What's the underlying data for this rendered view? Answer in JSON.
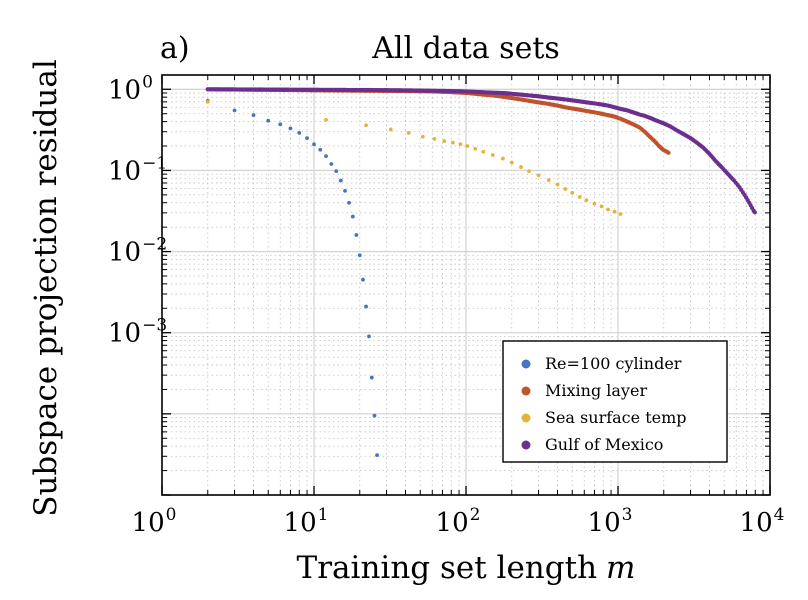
{
  "chart_data": {
    "type": "scatter",
    "panel_label": "a)",
    "title": "All data sets",
    "xlabel": "Training set length",
    "xlabel_var": "m",
    "ylabel": "Subspace projection residual",
    "xscale": "log",
    "yscale": "log",
    "xlim": [
      1,
      10000
    ],
    "ylim": [
      1e-05,
      1.5
    ],
    "grid": true,
    "legend_position": "bottom-right",
    "x_ticks": [
      {
        "value": 1,
        "base": "10",
        "exp": "0"
      },
      {
        "value": 10,
        "base": "10",
        "exp": "1"
      },
      {
        "value": 100,
        "base": "10",
        "exp": "2"
      },
      {
        "value": 1000,
        "base": "10",
        "exp": "3"
      },
      {
        "value": 10000,
        "base": "10",
        "exp": "4"
      }
    ],
    "y_ticks": [
      {
        "value": 1,
        "base": "10",
        "exp": "0"
      },
      {
        "value": 0.1,
        "base": "10",
        "exp": "−1"
      },
      {
        "value": 0.01,
        "base": "10",
        "exp": "−2"
      },
      {
        "value": 0.001,
        "base": "10",
        "exp": "−3"
      }
    ],
    "series": [
      {
        "name": "Re=100 cylinder",
        "color": "#4a72c4",
        "x": [
          2,
          3,
          4,
          5,
          6,
          7,
          8,
          9,
          10,
          11,
          12,
          13,
          14,
          15,
          16,
          17,
          18,
          19,
          20,
          21,
          22,
          23,
          24,
          25,
          26
        ],
        "y": [
          0.72,
          0.55,
          0.48,
          0.41,
          0.37,
          0.33,
          0.29,
          0.25,
          0.21,
          0.18,
          0.15,
          0.12,
          0.098,
          0.075,
          0.056,
          0.04,
          0.027,
          0.016,
          0.009,
          0.0045,
          0.0021,
          0.0009,
          0.00028,
          9.5e-05,
          3.1e-05
        ]
      },
      {
        "name": "Mixing layer",
        "color": "#c0532b",
        "x": [
          2,
          12,
          22,
          32,
          42,
          52,
          62,
          72,
          82,
          92,
          102,
          115,
          130,
          150,
          175,
          200,
          230,
          260,
          300,
          350,
          400,
          450,
          500,
          560,
          620,
          700,
          780,
          860,
          950,
          1050,
          1150,
          1260,
          1380,
          1500,
          1620,
          1740,
          1860,
          1980,
          2100,
          2200
        ],
        "y": [
          1.0,
          0.97,
          0.96,
          0.955,
          0.95,
          0.945,
          0.94,
          0.93,
          0.92,
          0.91,
          0.9,
          0.88,
          0.86,
          0.84,
          0.81,
          0.78,
          0.75,
          0.72,
          0.69,
          0.66,
          0.63,
          0.6,
          0.58,
          0.56,
          0.54,
          0.52,
          0.5,
          0.48,
          0.46,
          0.43,
          0.4,
          0.37,
          0.34,
          0.3,
          0.26,
          0.23,
          0.2,
          0.18,
          0.17,
          0.16
        ]
      },
      {
        "name": "Sea surface temp",
        "color": "#e2b43a",
        "x": [
          2,
          12,
          22,
          32,
          42,
          52,
          62,
          72,
          82,
          92,
          102,
          115,
          130,
          150,
          175,
          200,
          230,
          260,
          300,
          350,
          400,
          450,
          500,
          560,
          620,
          700,
          780,
          860,
          950,
          1040
        ],
        "y": [
          0.7,
          0.42,
          0.36,
          0.32,
          0.29,
          0.26,
          0.245,
          0.23,
          0.22,
          0.21,
          0.2,
          0.185,
          0.17,
          0.155,
          0.14,
          0.125,
          0.11,
          0.098,
          0.087,
          0.076,
          0.067,
          0.059,
          0.053,
          0.047,
          0.043,
          0.039,
          0.036,
          0.033,
          0.031,
          0.029
        ]
      },
      {
        "name": "Gulf of Mexico",
        "color": "#6b2f8e",
        "x": [
          2,
          12,
          22,
          32,
          42,
          52,
          62,
          72,
          82,
          92,
          102,
          115,
          130,
          150,
          175,
          200,
          230,
          260,
          300,
          350,
          400,
          450,
          500,
          560,
          620,
          700,
          780,
          860,
          950,
          1050,
          1150,
          1260,
          1380,
          1500,
          1650,
          1800,
          2000,
          2200,
          2450,
          2700,
          3000,
          3300,
          3650,
          4000,
          4400,
          4800,
          5300,
          5800,
          6300,
          6800,
          7300,
          7800,
          8100
        ],
        "y": [
          1.0,
          0.985,
          0.98,
          0.975,
          0.97,
          0.965,
          0.96,
          0.955,
          0.95,
          0.945,
          0.94,
          0.93,
          0.92,
          0.91,
          0.9,
          0.88,
          0.86,
          0.84,
          0.82,
          0.79,
          0.77,
          0.75,
          0.73,
          0.71,
          0.69,
          0.67,
          0.65,
          0.63,
          0.6,
          0.57,
          0.55,
          0.52,
          0.49,
          0.47,
          0.44,
          0.41,
          0.38,
          0.35,
          0.31,
          0.28,
          0.25,
          0.22,
          0.19,
          0.16,
          0.13,
          0.11,
          0.09,
          0.075,
          0.062,
          0.05,
          0.04,
          0.032,
          0.029
        ]
      }
    ]
  }
}
